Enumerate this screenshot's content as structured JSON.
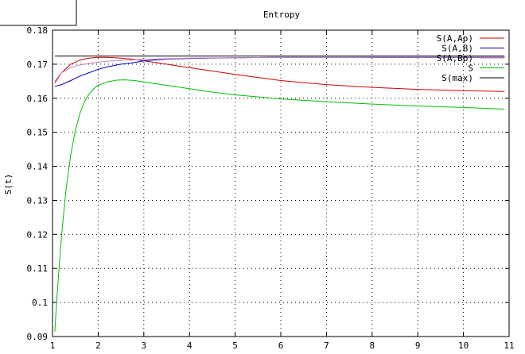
{
  "chart_data": {
    "type": "line",
    "title": "Entropy",
    "xlabel": "",
    "ylabel": "S(t)",
    "xlim": [
      1,
      11
    ],
    "ylim": [
      0.09,
      0.18
    ],
    "xticks": [
      "1",
      "2",
      "3",
      "4",
      "5",
      "6",
      "7",
      "8",
      "9",
      "10",
      "11"
    ],
    "yticks": [
      "0.09",
      "0.1",
      "0.11",
      "0.12",
      "0.13",
      "0.14",
      "0.15",
      "0.16",
      "0.17",
      "0.18"
    ],
    "grid": true,
    "legend_position": "top-right",
    "series": [
      {
        "name": "S(A,Ap)",
        "color": "#d00000",
        "x": [
          1.05,
          1.2,
          1.4,
          1.6,
          1.8,
          2.0,
          2.2,
          2.5,
          2.8,
          3.0,
          3.5,
          4.0,
          4.5,
          5.0,
          6.0,
          7.0,
          8.0,
          9.0,
          10.0,
          10.9
        ],
        "y": [
          0.1645,
          0.1675,
          0.17,
          0.1712,
          0.1718,
          0.172,
          0.172,
          0.1718,
          0.1714,
          0.171,
          0.17,
          0.169,
          0.168,
          0.167,
          0.1652,
          0.164,
          0.1632,
          0.1626,
          0.1622,
          0.162
        ]
      },
      {
        "name": "S(A,B)",
        "color": "#0000c0",
        "x": [
          1.05,
          1.2,
          1.4,
          1.6,
          1.8,
          2.0,
          2.2,
          2.5,
          2.8,
          3.0,
          3.5,
          4.0,
          5.0,
          6.0,
          7.0,
          8.0,
          9.0,
          10.0,
          10.9
        ],
        "y": [
          0.1635,
          0.164,
          0.1652,
          0.1665,
          0.1675,
          0.1685,
          0.1692,
          0.17,
          0.1705,
          0.171,
          0.1715,
          0.1717,
          0.1719,
          0.172,
          0.172,
          0.172,
          0.172,
          0.172,
          0.172
        ]
      },
      {
        "name": "S(A,Bp)",
        "color": "#c080c0",
        "x": [
          1.05,
          1.2,
          1.4,
          1.6,
          1.8,
          2.0,
          2.3,
          2.6,
          3.0,
          3.5,
          4.0,
          5.0,
          6.0,
          7.0,
          8.0,
          9.0,
          10.0,
          10.9
        ],
        "y": [
          0.165,
          0.1675,
          0.169,
          0.1698,
          0.1702,
          0.1706,
          0.171,
          0.1712,
          0.1714,
          0.1716,
          0.1718,
          0.1719,
          0.172,
          0.172,
          0.1721,
          0.1721,
          0.1721,
          0.1721
        ]
      },
      {
        "name": "S",
        "color": "#00c000",
        "x": [
          1.05,
          1.1,
          1.2,
          1.3,
          1.4,
          1.5,
          1.6,
          1.7,
          1.8,
          1.9,
          2.0,
          2.2,
          2.4,
          2.6,
          2.8,
          3.0,
          3.5,
          4.0,
          4.5,
          5.0,
          6.0,
          7.0,
          8.0,
          9.0,
          10.0,
          10.9
        ],
        "y": [
          0.0915,
          0.102,
          0.12,
          0.1335,
          0.1435,
          0.1505,
          0.1555,
          0.159,
          0.1612,
          0.1628,
          0.1638,
          0.1648,
          0.1653,
          0.1654,
          0.1652,
          0.1648,
          0.1638,
          0.1628,
          0.1618,
          0.161,
          0.1598,
          0.159,
          0.1583,
          0.1577,
          0.1573,
          0.1568
        ]
      },
      {
        "name": "S(max)",
        "color": "#000000",
        "x": [
          1.05,
          10.9
        ],
        "y": [
          0.1724,
          0.1724
        ]
      }
    ]
  }
}
